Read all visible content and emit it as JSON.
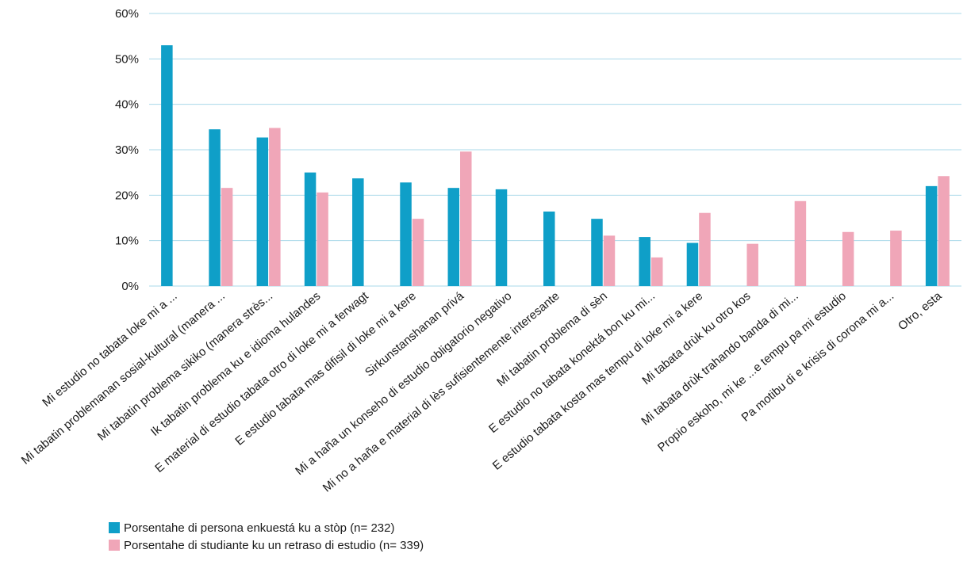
{
  "chart_data": {
    "type": "bar",
    "title": "",
    "xlabel": "",
    "ylabel": "",
    "ylim": [
      0,
      60
    ],
    "y_ticks": [
      "0%",
      "10%",
      "20%",
      "30%",
      "40%",
      "50%",
      "60%"
    ],
    "grid": true,
    "legend_position": "bottom-left",
    "categories": [
      "Mi estudio no tabata loke mi a ...",
      "Mi tabatin problemanan sosial-kultural (manera ...",
      "Mi tabatin problema sikiko (manera strès...",
      "Ik tabatin problema ku e idioma hulandes",
      "E material di estudio tabata otro di loke mi a ferwagt",
      "E estudio tabata mas difisil di loke mi a kere",
      "Sirkunstanshanan privá",
      "Mi a haña un konseho di estudio obligatorio negativo",
      "Mi no a haña e material di lès sufisientemente interesante",
      "Mi tabatin problema di sèn",
      "E estudio no tabata konektá bon ku mi...",
      "E estudio tabata kosta mas tempu di loke mi a kere",
      "Mi tabata drùk ku otro kos",
      "Mi tabata drùk trahando banda di mi...",
      "Propio eskoho, mi ke ...e tempu pa mi estudio",
      "Pa motibu di e krisis di corona mi a...",
      "Otro, esta"
    ],
    "series": [
      {
        "name": "Porsentahe di persona enkuestá ku a stòp (n= 232)",
        "color": "#0f9fc8",
        "values": [
          53,
          34.5,
          32.7,
          25,
          23.7,
          22.8,
          21.6,
          21.3,
          16.4,
          14.8,
          10.8,
          9.5,
          null,
          null,
          null,
          null,
          22
        ]
      },
      {
        "name": "Porsentahe di studiante ku un retraso di estudio (n= 339)",
        "color": "#f0a6b8",
        "values": [
          null,
          21.6,
          34.8,
          20.6,
          null,
          14.8,
          29.6,
          null,
          null,
          11.1,
          6.3,
          16.1,
          9.3,
          18.7,
          11.9,
          12.2,
          24.2
        ]
      }
    ]
  }
}
